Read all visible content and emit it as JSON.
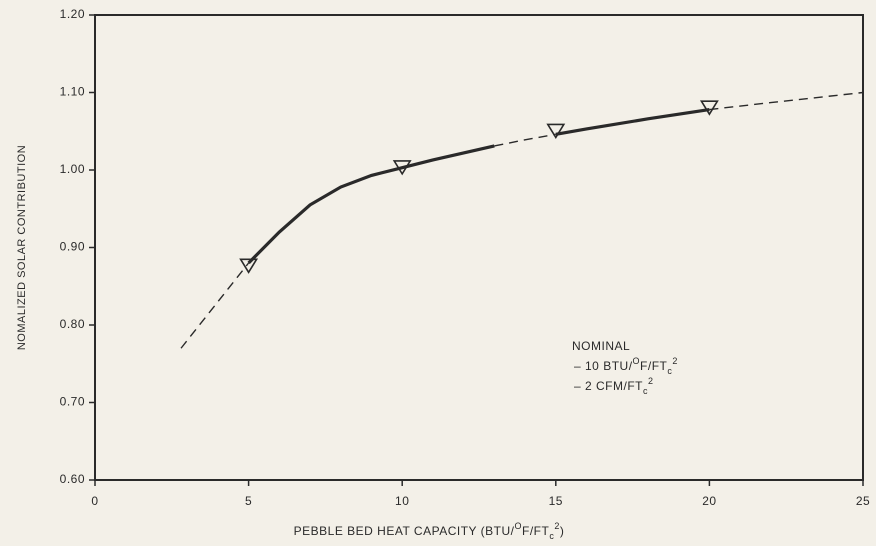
{
  "chart_data": {
    "type": "line",
    "xlabel": [
      "PEBBLE BED HEAT CAPACITY (BTU/",
      "O",
      "F/FT",
      "c",
      "2",
      ")"
    ],
    "ylabel": "NOMALIZED SOLAR CONTRIBUTION",
    "xlim": [
      0,
      25
    ],
    "xticks": [
      0,
      5,
      10,
      15,
      20,
      25
    ],
    "ylim": [
      0.6,
      1.2
    ],
    "yticks": [
      {
        "value": 0.6,
        "label": "0.60"
      },
      {
        "value": 0.7,
        "label": "0.70"
      },
      {
        "value": 0.8,
        "label": "0.80"
      },
      {
        "value": 0.9,
        "label": "0.90"
      },
      {
        "value": 1.0,
        "label": "1.00"
      },
      {
        "value": 1.1,
        "label": "1.10"
      },
      {
        "value": 1.2,
        "label": "1.20"
      }
    ],
    "color": "#2a2a2a",
    "series": [
      {
        "dashed": true,
        "x": [
          2.8,
          4,
          5
        ],
        "values": [
          0.77,
          0.83,
          0.88
        ]
      },
      {
        "dashed": false,
        "x": [
          5,
          6,
          7,
          8,
          9,
          10,
          11,
          12,
          13
        ],
        "values": [
          0.88,
          0.92,
          0.955,
          0.978,
          0.993,
          1.003,
          1.013,
          1.022,
          1.031
        ]
      },
      {
        "dashed": true,
        "x": [
          13,
          14,
          15
        ],
        "values": [
          1.031,
          1.039,
          1.046
        ]
      },
      {
        "dashed": false,
        "x": [
          15,
          16,
          18,
          20
        ],
        "values": [
          1.046,
          1.053,
          1.066,
          1.078
        ]
      },
      {
        "dashed": true,
        "x": [
          20,
          22,
          25
        ],
        "values": [
          1.078,
          1.087,
          1.1
        ]
      }
    ],
    "markers": {
      "x": [
        5,
        10,
        15,
        20
      ],
      "values": [
        0.877,
        1.004,
        1.051,
        1.081
      ]
    },
    "annotation": [
      [
        "NOMINAL"
      ],
      [
        "– 10 BTU/",
        "O",
        "F/FT",
        "c",
        "2"
      ],
      [
        "– 2 CFM/FT",
        "c",
        "2"
      ]
    ]
  }
}
